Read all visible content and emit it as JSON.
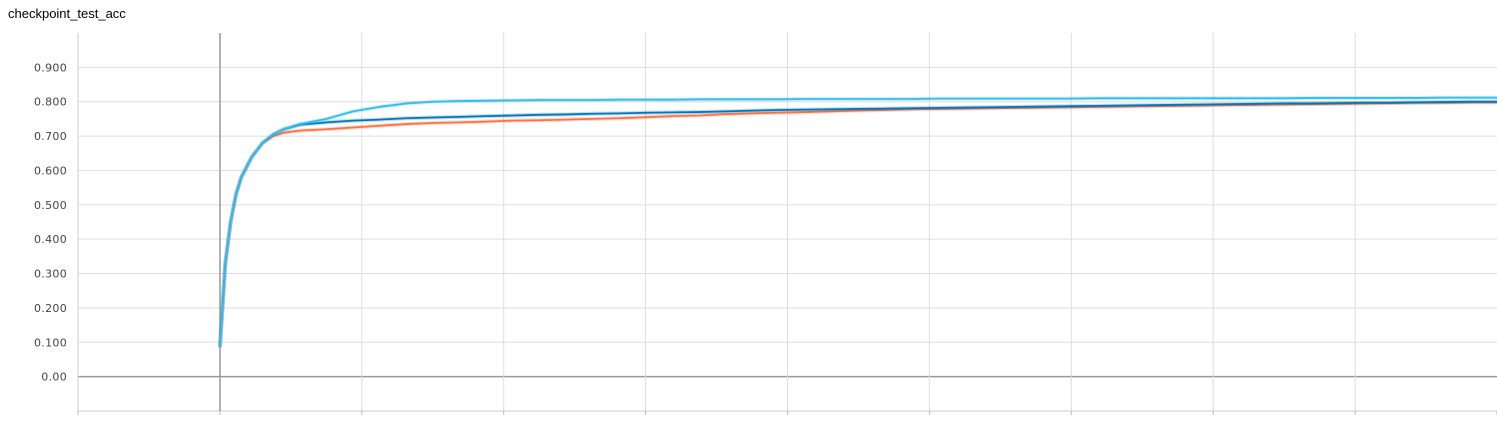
{
  "title": "checkpoint_test_acc",
  "chart_data": {
    "type": "line",
    "title": "checkpoint_test_acc",
    "xlabel": "",
    "ylabel": "",
    "ylim": [
      -0.1,
      1.0
    ],
    "yticks": [
      0.0,
      0.1,
      0.2,
      0.3,
      0.4,
      0.5,
      0.6,
      0.7,
      0.8,
      0.9
    ],
    "ytick_labels": [
      "0.00",
      "0.100",
      "0.200",
      "0.300",
      "0.400",
      "0.500",
      "0.600",
      "0.700",
      "0.800",
      "0.900"
    ],
    "x_tick_labels_visible": false,
    "grid": true,
    "legend": "none",
    "series": [
      {
        "color": "#ff7043",
        "points": [
          [
            0,
            0.09
          ],
          [
            1,
            0.33
          ],
          [
            2,
            0.45
          ],
          [
            3,
            0.53
          ],
          [
            4,
            0.58
          ],
          [
            6,
            0.64
          ],
          [
            8,
            0.68
          ],
          [
            10,
            0.7
          ],
          [
            12,
            0.71
          ],
          [
            15,
            0.716
          ],
          [
            20,
            0.72
          ],
          [
            25,
            0.725
          ],
          [
            30,
            0.73
          ],
          [
            35,
            0.735
          ],
          [
            40,
            0.738
          ],
          [
            45,
            0.74
          ],
          [
            50,
            0.742
          ],
          [
            55,
            0.745
          ],
          [
            60,
            0.746
          ],
          [
            65,
            0.748
          ],
          [
            70,
            0.75
          ],
          [
            75,
            0.752
          ],
          [
            80,
            0.755
          ],
          [
            85,
            0.758
          ],
          [
            90,
            0.76
          ],
          [
            95,
            0.764
          ],
          [
            100,
            0.766
          ],
          [
            105,
            0.768
          ],
          [
            110,
            0.77
          ],
          [
            115,
            0.772
          ],
          [
            120,
            0.774
          ],
          [
            125,
            0.776
          ],
          [
            130,
            0.778
          ],
          [
            135,
            0.779
          ],
          [
            140,
            0.78
          ],
          [
            145,
            0.781
          ],
          [
            150,
            0.782
          ],
          [
            155,
            0.783
          ],
          [
            160,
            0.784
          ],
          [
            165,
            0.785
          ],
          [
            170,
            0.786
          ],
          [
            175,
            0.787
          ],
          [
            180,
            0.788
          ],
          [
            185,
            0.789
          ],
          [
            190,
            0.79
          ],
          [
            195,
            0.791
          ],
          [
            200,
            0.792
          ],
          [
            205,
            0.793
          ],
          [
            210,
            0.794
          ],
          [
            215,
            0.795
          ],
          [
            220,
            0.796
          ],
          [
            225,
            0.797
          ],
          [
            230,
            0.797
          ],
          [
            235,
            0.798
          ],
          [
            240,
            0.798
          ]
        ]
      },
      {
        "color": "#0077bb",
        "points": [
          [
            0,
            0.09
          ],
          [
            1,
            0.33
          ],
          [
            2,
            0.45
          ],
          [
            3,
            0.53
          ],
          [
            4,
            0.58
          ],
          [
            6,
            0.64
          ],
          [
            8,
            0.68
          ],
          [
            10,
            0.705
          ],
          [
            12,
            0.72
          ],
          [
            15,
            0.733
          ],
          [
            20,
            0.74
          ],
          [
            25,
            0.745
          ],
          [
            30,
            0.748
          ],
          [
            35,
            0.752
          ],
          [
            40,
            0.754
          ],
          [
            45,
            0.756
          ],
          [
            50,
            0.758
          ],
          [
            55,
            0.76
          ],
          [
            60,
            0.762
          ],
          [
            65,
            0.763
          ],
          [
            70,
            0.765
          ],
          [
            75,
            0.766
          ],
          [
            80,
            0.768
          ],
          [
            85,
            0.769
          ],
          [
            90,
            0.77
          ],
          [
            95,
            0.772
          ],
          [
            100,
            0.774
          ],
          [
            105,
            0.776
          ],
          [
            110,
            0.777
          ],
          [
            115,
            0.778
          ],
          [
            120,
            0.779
          ],
          [
            125,
            0.78
          ],
          [
            130,
            0.781
          ],
          [
            135,
            0.782
          ],
          [
            140,
            0.783
          ],
          [
            145,
            0.784
          ],
          [
            150,
            0.785
          ],
          [
            155,
            0.786
          ],
          [
            160,
            0.787
          ],
          [
            165,
            0.788
          ],
          [
            170,
            0.789
          ],
          [
            175,
            0.79
          ],
          [
            180,
            0.791
          ],
          [
            185,
            0.792
          ],
          [
            190,
            0.793
          ],
          [
            195,
            0.794
          ],
          [
            200,
            0.795
          ],
          [
            205,
            0.795
          ],
          [
            210,
            0.796
          ],
          [
            215,
            0.797
          ],
          [
            220,
            0.797
          ],
          [
            225,
            0.798
          ],
          [
            230,
            0.799
          ],
          [
            235,
            0.8
          ],
          [
            240,
            0.8
          ]
        ]
      },
      {
        "color": "#33bbee",
        "points": [
          [
            0,
            0.09
          ],
          [
            1,
            0.33
          ],
          [
            2,
            0.45
          ],
          [
            3,
            0.53
          ],
          [
            4,
            0.58
          ],
          [
            6,
            0.64
          ],
          [
            8,
            0.68
          ],
          [
            10,
            0.705
          ],
          [
            12,
            0.72
          ],
          [
            15,
            0.735
          ],
          [
            20,
            0.75
          ],
          [
            25,
            0.772
          ],
          [
            30,
            0.785
          ],
          [
            35,
            0.795
          ],
          [
            40,
            0.8
          ],
          [
            45,
            0.802
          ],
          [
            50,
            0.803
          ],
          [
            55,
            0.804
          ],
          [
            60,
            0.805
          ],
          [
            65,
            0.805
          ],
          [
            70,
            0.805
          ],
          [
            75,
            0.806
          ],
          [
            80,
            0.806
          ],
          [
            85,
            0.806
          ],
          [
            90,
            0.807
          ],
          [
            95,
            0.807
          ],
          [
            100,
            0.807
          ],
          [
            105,
            0.807
          ],
          [
            110,
            0.808
          ],
          [
            115,
            0.808
          ],
          [
            120,
            0.808
          ],
          [
            125,
            0.808
          ],
          [
            130,
            0.808
          ],
          [
            135,
            0.809
          ],
          [
            140,
            0.809
          ],
          [
            145,
            0.809
          ],
          [
            150,
            0.809
          ],
          [
            155,
            0.809
          ],
          [
            160,
            0.809
          ],
          [
            165,
            0.81
          ],
          [
            170,
            0.81
          ],
          [
            175,
            0.81
          ],
          [
            180,
            0.81
          ],
          [
            185,
            0.81
          ],
          [
            190,
            0.81
          ],
          [
            195,
            0.81
          ],
          [
            200,
            0.81
          ],
          [
            205,
            0.811
          ],
          [
            210,
            0.811
          ],
          [
            215,
            0.811
          ],
          [
            220,
            0.811
          ],
          [
            225,
            0.811
          ],
          [
            230,
            0.812
          ],
          [
            235,
            0.812
          ],
          [
            240,
            0.812
          ]
        ]
      }
    ]
  }
}
